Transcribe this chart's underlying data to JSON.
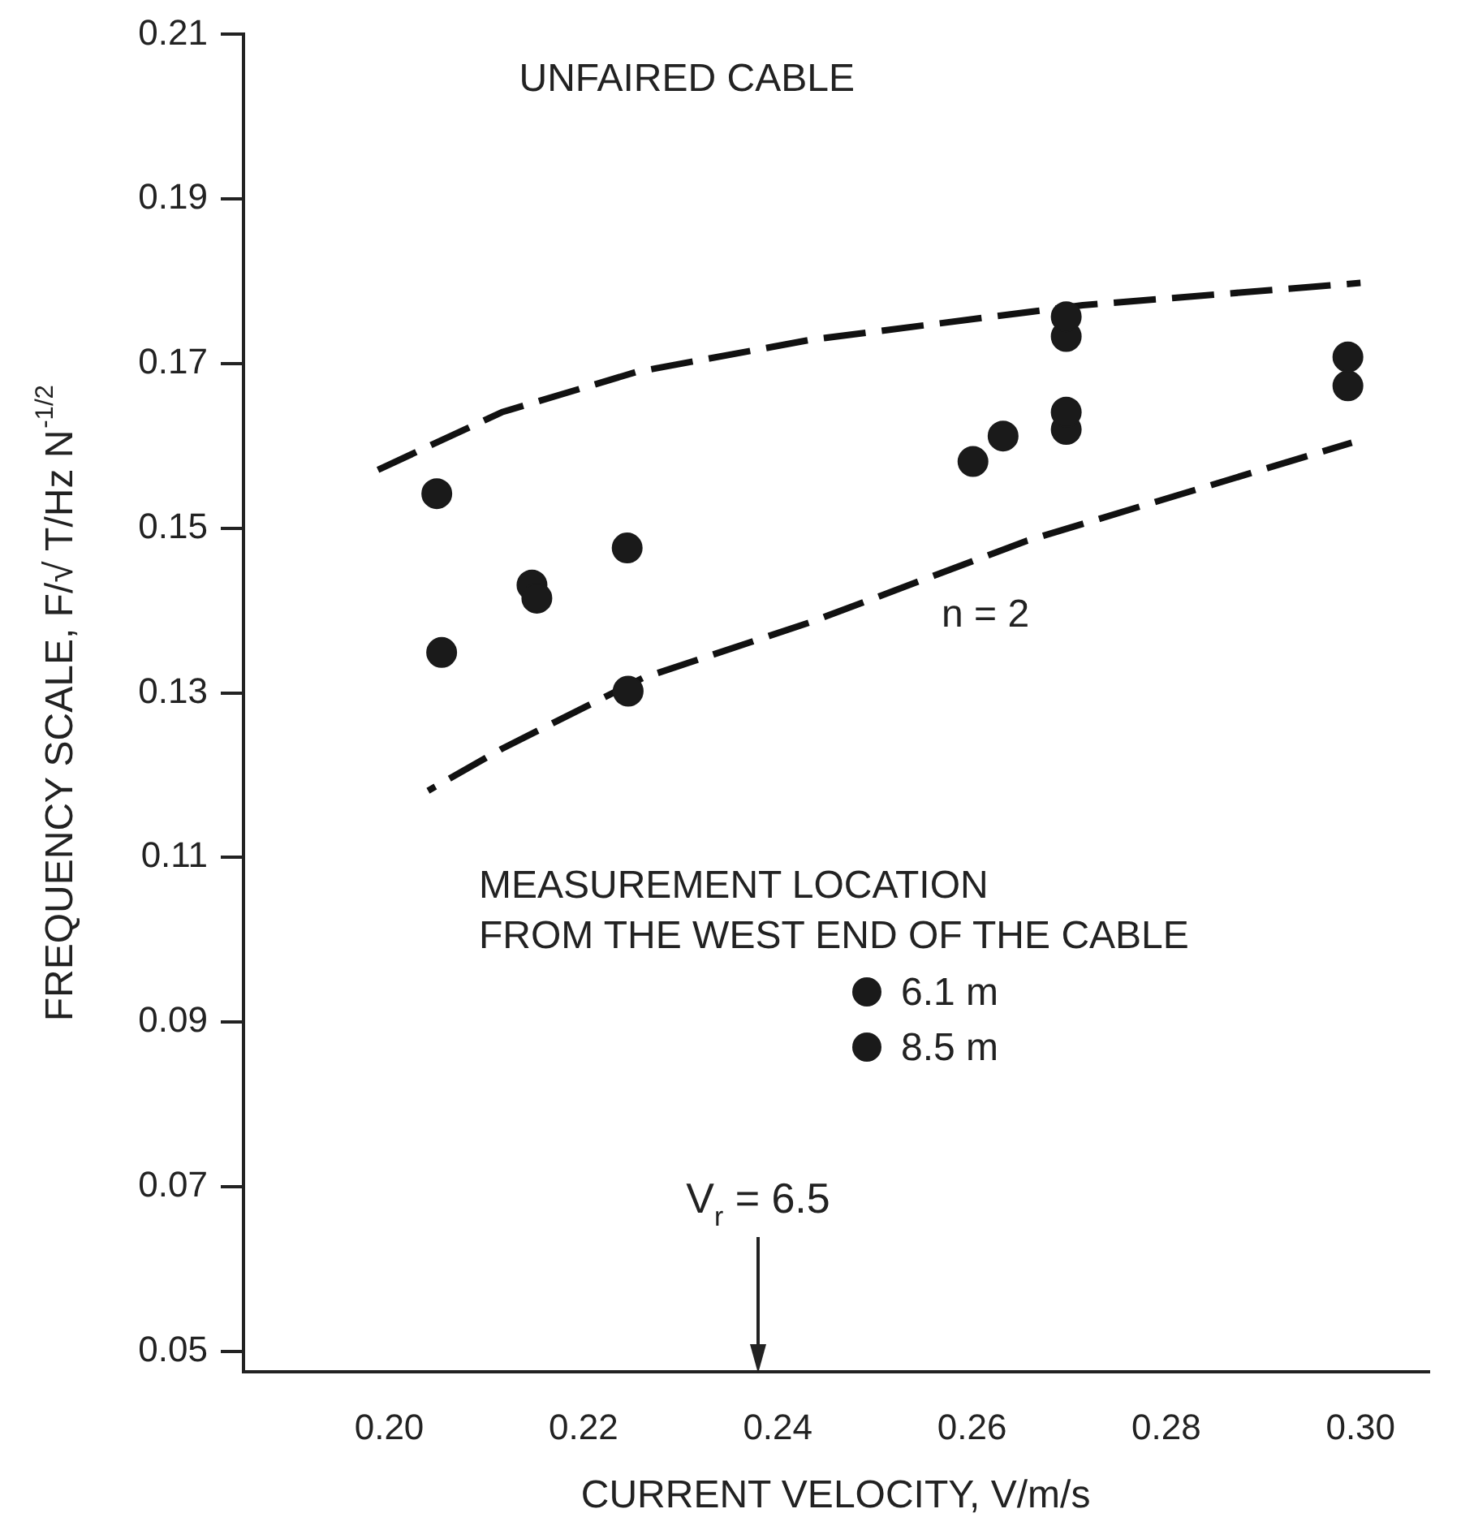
{
  "chart_data": {
    "type": "scatter",
    "title": "UNFAIRED CABLE",
    "xlabel": "CURRENT VELOCITY, V/m/s",
    "ylabel": "FREQUENCY SCALE, F/√ T/Hz N$^{-1/2}$",
    "legend_title": "MEASUREMENT LOCATION\nFROM THE WEST END OF THE CABLE",
    "legend": "center right",
    "marker": "circle",
    "grid": false,
    "xlim": [
      0.185,
      0.307
    ],
    "ylim": [
      0.0475,
      0.21
    ],
    "xticks": [
      {
        "value": 0.2,
        "label": "0.20"
      },
      0.22,
      0.24,
      0.26,
      0.28,
      {
        "value": 0.3,
        "label": "0.30"
      }
    ],
    "yticks": [
      0.05,
      0.07,
      0.09,
      0.11,
      0.13,
      0.15,
      0.17,
      0.19,
      0.21
    ],
    "series": [
      {
        "name": "6.1 m",
        "color": "#1a1a1a",
        "x": [
          0.2049,
          0.2054,
          0.2152,
          0.2246,
          0.2697,
          0.2632,
          0.2697,
          0.2987
        ],
        "values": [
          0.1542,
          0.1349,
          0.1415,
          0.1302,
          0.1757,
          0.1612,
          0.1641,
          0.1708
        ]
      },
      {
        "name": "8.5 m",
        "color": "#1a1a1a",
        "x": [
          0.2147,
          0.2245,
          0.2697,
          0.2601,
          0.2697,
          0.2987
        ],
        "values": [
          0.1431,
          0.1476,
          0.1733,
          0.1581,
          0.162,
          0.1673
        ]
      },
      {
        "type": "line",
        "color": "#111111",
        "line_style": "dashed",
        "marker": "none",
        "x": [
          0.1985,
          0.2116,
          0.2255,
          0.2434,
          0.2714,
          0.3
        ],
        "values": [
          0.1569,
          0.1641,
          0.169,
          0.1729,
          0.1771,
          0.1798
        ]
      },
      {
        "type": "line",
        "color": "#111111",
        "line_style": "dashed",
        "marker": "none",
        "x": [
          0.204,
          0.2116,
          0.2261,
          0.2434,
          0.2657,
          0.2991
        ],
        "values": [
          0.1181,
          0.1232,
          0.1318,
          0.1386,
          0.1485,
          0.1604
        ]
      }
    ],
    "annotations": [
      "n = 2",
      "V$_{r}$ = 6.5"
    ]
  }
}
